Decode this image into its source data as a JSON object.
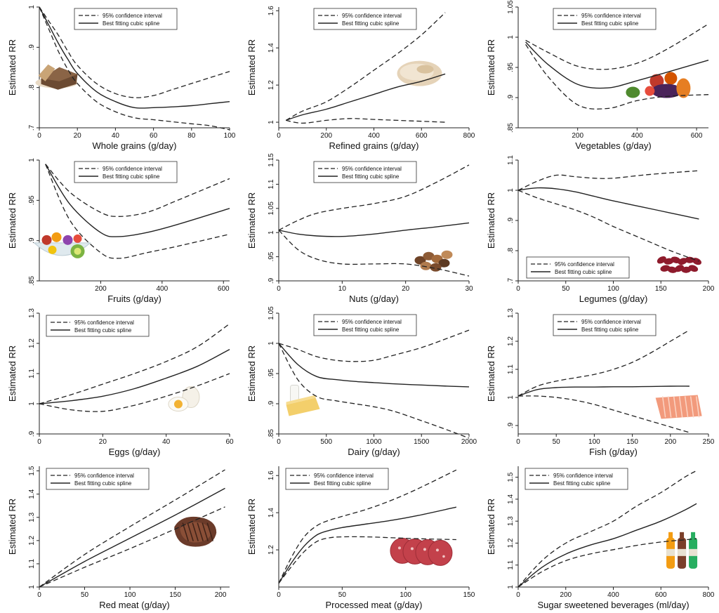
{
  "ylabel": "Estimated RR",
  "legend": {
    "ci": "95% confidence interval",
    "spline": "Best fitting cubic spline"
  },
  "chart_data": [
    {
      "type": "line",
      "xlabel": "Whole grains (g/day)",
      "ylabel": "Estimated RR",
      "xlim": [
        0,
        100
      ],
      "ylim": [
        0.7,
        1.0
      ],
      "xticks": [
        0,
        20,
        40,
        60,
        80,
        100
      ],
      "xtick_labels": [
        "0",
        "20",
        "40",
        "60",
        "80",
        "100"
      ],
      "yticks": [
        0.7,
        0.8,
        0.9,
        1.0
      ],
      "ytick_labels": [
        ".7",
        ".8",
        ".9",
        "1"
      ],
      "legend_position": "top-right",
      "image": "bread",
      "x": [
        0,
        5,
        10,
        15,
        20,
        30,
        40,
        50,
        60,
        70,
        80,
        90,
        100
      ],
      "series": [
        {
          "name": "95% confidence interval",
          "style": "dashed",
          "values": [
            1.0,
            0.965,
            0.93,
            0.89,
            0.855,
            0.81,
            0.785,
            0.775,
            0.78,
            0.795,
            0.81,
            0.825,
            0.84
          ]
        },
        {
          "name": "Best fitting cubic spline",
          "style": "solid",
          "values": [
            1.0,
            0.955,
            0.91,
            0.87,
            0.835,
            0.79,
            0.765,
            0.75,
            0.75,
            0.752,
            0.755,
            0.76,
            0.765
          ]
        },
        {
          "name": "95% confidence interval",
          "style": "dashed",
          "values": [
            1.0,
            0.945,
            0.89,
            0.845,
            0.81,
            0.765,
            0.74,
            0.725,
            0.72,
            0.715,
            0.71,
            0.705,
            0.695
          ]
        }
      ]
    },
    {
      "type": "line",
      "xlabel": "Refined grains (g/day)",
      "ylabel": "Estimated RR",
      "xlim": [
        0,
        800
      ],
      "ylim": [
        0.97,
        1.62
      ],
      "xticks": [
        0,
        200,
        400,
        600,
        800
      ],
      "xtick_labels": [
        "0",
        "200",
        "400",
        "600",
        "800"
      ],
      "yticks": [
        1.0,
        1.2,
        1.4,
        1.6
      ],
      "ytick_labels": [
        "1",
        "1.2",
        "1.4",
        "1.6"
      ],
      "legend_position": "top-right",
      "image": "bread-loaf",
      "x": [
        30,
        100,
        200,
        300,
        400,
        500,
        600,
        700
      ],
      "series": [
        {
          "name": "95% confidence interval",
          "style": "dashed",
          "values": [
            1.01,
            1.06,
            1.11,
            1.19,
            1.28,
            1.37,
            1.47,
            1.59
          ]
        },
        {
          "name": "Best fitting cubic spline",
          "style": "solid",
          "values": [
            1.01,
            1.04,
            1.07,
            1.11,
            1.15,
            1.19,
            1.22,
            1.26
          ]
        },
        {
          "name": "95% confidence interval",
          "style": "dashed",
          "values": [
            1.01,
            0.995,
            1.01,
            1.02,
            1.015,
            1.01,
            1.005,
            1.0
          ]
        }
      ]
    },
    {
      "type": "line",
      "xlabel": "Vegetables (g/day)",
      "ylabel": "Estimated RR",
      "xlim": [
        0,
        640
      ],
      "ylim": [
        0.85,
        1.05
      ],
      "xticks": [
        200,
        400,
        600
      ],
      "xtick_labels": [
        "200",
        "400",
        "600"
      ],
      "yticks": [
        0.85,
        0.9,
        0.95,
        1.0,
        1.05
      ],
      "ytick_labels": [
        ".85",
        ".9",
        ".95",
        "1",
        "1.05"
      ],
      "legend_position": "top-right",
      "image": "vegetables",
      "x": [
        25,
        100,
        200,
        300,
        400,
        500,
        640
      ],
      "series": [
        {
          "name": "95% confidence interval",
          "style": "dashed",
          "values": [
            0.995,
            0.975,
            0.952,
            0.947,
            0.957,
            0.98,
            1.022
          ]
        },
        {
          "name": "Best fitting cubic spline",
          "style": "solid",
          "values": [
            0.992,
            0.955,
            0.922,
            0.916,
            0.928,
            0.942,
            0.962
          ]
        },
        {
          "name": "95% confidence interval",
          "style": "dashed",
          "values": [
            0.988,
            0.935,
            0.888,
            0.882,
            0.895,
            0.902,
            0.905
          ]
        }
      ]
    },
    {
      "type": "line",
      "xlabel": "Fruits (g/day)",
      "ylabel": "Estimated RR",
      "xlim": [
        0,
        620
      ],
      "ylim": [
        0.85,
        1.0
      ],
      "xticks": [
        200,
        400,
        600
      ],
      "xtick_labels": [
        "200",
        "400",
        "600"
      ],
      "yticks": [
        0.85,
        0.9,
        0.95,
        1.0
      ],
      "ytick_labels": [
        ".85",
        ".9",
        ".95",
        "1"
      ],
      "legend_position": "top-right",
      "image": "fruit-bowl",
      "x": [
        20,
        100,
        200,
        260,
        350,
        450,
        620
      ],
      "series": [
        {
          "name": "95% confidence interval",
          "style": "dashed",
          "values": [
            0.995,
            0.96,
            0.935,
            0.93,
            0.935,
            0.95,
            0.977
          ]
        },
        {
          "name": "Best fitting cubic spline",
          "style": "solid",
          "values": [
            0.995,
            0.945,
            0.91,
            0.905,
            0.91,
            0.92,
            0.94
          ]
        },
        {
          "name": "95% confidence interval",
          "style": "dashed",
          "values": [
            0.995,
            0.925,
            0.885,
            0.878,
            0.885,
            0.893,
            0.908
          ]
        }
      ]
    },
    {
      "type": "line",
      "xlabel": "Nuts (g/day)",
      "ylabel": "Estimated RR",
      "xlim": [
        0,
        30
      ],
      "ylim": [
        0.9,
        1.15
      ],
      "xticks": [
        0,
        10,
        20,
        30
      ],
      "xtick_labels": [
        "0",
        "10",
        "20",
        "30"
      ],
      "yticks": [
        0.9,
        0.95,
        1.0,
        1.05,
        1.1,
        1.15
      ],
      "ytick_labels": [
        ".9",
        ".95",
        "1",
        "1.05",
        "1.1",
        "1.15"
      ],
      "legend_position": "top-right",
      "image": "nuts",
      "x": [
        0,
        3,
        6,
        10,
        15,
        20,
        25,
        30
      ],
      "series": [
        {
          "name": "95% confidence interval",
          "style": "dashed",
          "values": [
            1.005,
            1.025,
            1.04,
            1.05,
            1.06,
            1.075,
            1.105,
            1.14
          ]
        },
        {
          "name": "Best fitting cubic spline",
          "style": "solid",
          "values": [
            1.005,
            0.997,
            0.993,
            0.992,
            0.997,
            1.005,
            1.012,
            1.02
          ]
        },
        {
          "name": "95% confidence interval",
          "style": "dashed",
          "values": [
            1.005,
            0.965,
            0.945,
            0.935,
            0.935,
            0.935,
            0.925,
            0.91
          ]
        }
      ]
    },
    {
      "type": "line",
      "xlabel": "Legumes (g/day)",
      "ylabel": "Estimated RR",
      "xlim": [
        0,
        200
      ],
      "ylim": [
        0.7,
        1.1
      ],
      "xticks": [
        0,
        50,
        100,
        150,
        200
      ],
      "xtick_labels": [
        "0",
        "50",
        "100",
        "150",
        "200"
      ],
      "yticks": [
        0.7,
        0.8,
        0.9,
        1.0,
        1.1
      ],
      "ytick_labels": [
        ".7",
        ".8",
        ".9",
        "1",
        "1.1"
      ],
      "legend_position": "bottom-left",
      "image": "beans",
      "x": [
        0,
        20,
        40,
        60,
        80,
        100,
        130,
        160,
        190
      ],
      "series": [
        {
          "name": "95% confidence interval",
          "style": "dashed",
          "values": [
            1.0,
            1.03,
            1.05,
            1.045,
            1.04,
            1.04,
            1.05,
            1.058,
            1.065
          ]
        },
        {
          "name": "Best fitting cubic spline",
          "style": "solid",
          "values": [
            1.0,
            1.008,
            1.005,
            0.995,
            0.98,
            0.965,
            0.945,
            0.925,
            0.905
          ]
        },
        {
          "name": "95% confidence interval",
          "style": "dashed",
          "values": [
            1.0,
            0.975,
            0.955,
            0.935,
            0.91,
            0.88,
            0.84,
            0.8,
            0.765
          ]
        }
      ]
    },
    {
      "type": "line",
      "xlabel": "Eggs (g/day)",
      "ylabel": "Estimated RR",
      "xlim": [
        0,
        60
      ],
      "ylim": [
        0.9,
        1.3
      ],
      "xticks": [
        0,
        20,
        40,
        60
      ],
      "xtick_labels": [
        "0",
        "20",
        "40",
        "60"
      ],
      "yticks": [
        0.9,
        1.0,
        1.1,
        1.2,
        1.3
      ],
      "ytick_labels": [
        ".9",
        "1",
        "1.1",
        "1.2",
        "1.3"
      ],
      "legend_position": "top-left",
      "image": "eggs",
      "x": [
        0,
        10,
        20,
        30,
        40,
        50,
        60
      ],
      "series": [
        {
          "name": "95% confidence interval",
          "style": "dashed",
          "values": [
            1.0,
            1.03,
            1.065,
            1.1,
            1.14,
            1.19,
            1.265
          ]
        },
        {
          "name": "Best fitting cubic spline",
          "style": "solid",
          "values": [
            1.0,
            1.01,
            1.025,
            1.05,
            1.085,
            1.125,
            1.18
          ]
        },
        {
          "name": "95% confidence interval",
          "style": "dashed",
          "values": [
            1.0,
            0.98,
            0.975,
            0.995,
            1.025,
            1.06,
            1.1
          ]
        }
      ]
    },
    {
      "type": "line",
      "xlabel": "Dairy (g/day)",
      "ylabel": "Estimated RR",
      "xlim": [
        0,
        2000
      ],
      "ylim": [
        0.85,
        1.05
      ],
      "xticks": [
        0,
        500,
        1000,
        1500,
        2000
      ],
      "xtick_labels": [
        "0",
        "500",
        "1000",
        "1500",
        "2000"
      ],
      "yticks": [
        0.85,
        0.9,
        0.95,
        1.0,
        1.05
      ],
      "ytick_labels": [
        ".85",
        ".9",
        ".95",
        "1",
        "1.05"
      ],
      "legend_position": "top-right",
      "image": "milk-cheese",
      "x": [
        0,
        200,
        400,
        600,
        800,
        1000,
        1200,
        1500,
        1800,
        2000
      ],
      "series": [
        {
          "name": "95% confidence interval",
          "style": "dashed",
          "values": [
            1.0,
            0.99,
            0.978,
            0.972,
            0.97,
            0.972,
            0.98,
            0.993,
            1.01,
            1.022
          ]
        },
        {
          "name": "Best fitting cubic spline",
          "style": "solid",
          "values": [
            1.0,
            0.965,
            0.945,
            0.94,
            0.937,
            0.935,
            0.933,
            0.931,
            0.929,
            0.928
          ]
        },
        {
          "name": "95% confidence interval",
          "style": "dashed",
          "values": [
            1.0,
            0.94,
            0.912,
            0.905,
            0.9,
            0.895,
            0.888,
            0.872,
            0.855,
            0.843
          ]
        }
      ]
    },
    {
      "type": "line",
      "xlabel": "Fish (g/day)",
      "ylabel": "Estimated RR",
      "xlim": [
        0,
        250
      ],
      "ylim": [
        0.87,
        1.3
      ],
      "xticks": [
        0,
        50,
        100,
        150,
        200,
        250
      ],
      "xtick_labels": [
        "0",
        "50",
        "100",
        "150",
        "200",
        "250"
      ],
      "yticks": [
        0.9,
        1.0,
        1.1,
        1.2,
        1.3
      ],
      "ytick_labels": [
        ".9",
        "1",
        "1.1",
        "1.2",
        "1.3"
      ],
      "legend_position": "top-right",
      "image": "salmon",
      "x": [
        0,
        25,
        50,
        75,
        100,
        125,
        150,
        175,
        200,
        225
      ],
      "series": [
        {
          "name": "95% confidence interval",
          "style": "dashed",
          "values": [
            1.005,
            1.04,
            1.058,
            1.07,
            1.082,
            1.1,
            1.125,
            1.16,
            1.2,
            1.24
          ]
        },
        {
          "name": "Best fitting cubic spline",
          "style": "solid",
          "values": [
            1.005,
            1.028,
            1.035,
            1.037,
            1.037,
            1.038,
            1.038,
            1.039,
            1.04,
            1.04
          ]
        },
        {
          "name": "95% confidence interval",
          "style": "dashed",
          "values": [
            1.005,
            1.005,
            1.0,
            0.99,
            0.975,
            0.955,
            0.935,
            0.915,
            0.895,
            0.875
          ]
        }
      ]
    },
    {
      "type": "line",
      "xlabel": "Red meat (g/day)",
      "ylabel": "Estimated RR",
      "xlim": [
        0,
        210
      ],
      "ylim": [
        1.0,
        1.52
      ],
      "xticks": [
        0,
        50,
        100,
        150,
        200
      ],
      "xtick_labels": [
        "0",
        "50",
        "100",
        "150",
        "200"
      ],
      "yticks": [
        1.0,
        1.1,
        1.2,
        1.3,
        1.4,
        1.5
      ],
      "ytick_labels": [
        "1",
        "1.1",
        "1.2",
        "1.3",
        "1.4",
        "1.5"
      ],
      "legend_position": "top-left",
      "image": "steak",
      "x": [
        0,
        50,
        100,
        150,
        205
      ],
      "series": [
        {
          "name": "95% confidence interval",
          "style": "dashed",
          "values": [
            1.0,
            1.14,
            1.26,
            1.375,
            1.505
          ]
        },
        {
          "name": "Best fitting cubic spline",
          "style": "solid",
          "values": [
            1.0,
            1.11,
            1.21,
            1.31,
            1.425
          ]
        },
        {
          "name": "95% confidence interval",
          "style": "dashed",
          "values": [
            1.0,
            1.085,
            1.165,
            1.25,
            1.345
          ]
        }
      ]
    },
    {
      "type": "line",
      "xlabel": "Processed meat (g/day)",
      "ylabel": "Estimated RR",
      "xlim": [
        0,
        150
      ],
      "ylim": [
        1.0,
        1.65
      ],
      "xticks": [
        0,
        50,
        100,
        150
      ],
      "xtick_labels": [
        "0",
        "50",
        "100",
        "150"
      ],
      "yticks": [
        1.2,
        1.4,
        1.6
      ],
      "ytick_labels": [
        "1.2",
        "1.4",
        "1.6"
      ],
      "legend_position": "top-left",
      "image": "salami",
      "x": [
        0,
        10,
        20,
        30,
        40,
        50,
        70,
        90,
        110,
        140
      ],
      "series": [
        {
          "name": "95% confidence interval",
          "style": "dashed",
          "values": [
            1.02,
            1.16,
            1.27,
            1.33,
            1.36,
            1.38,
            1.42,
            1.47,
            1.53,
            1.63
          ]
        },
        {
          "name": "Best fitting cubic spline",
          "style": "solid",
          "values": [
            1.02,
            1.13,
            1.22,
            1.28,
            1.305,
            1.32,
            1.34,
            1.36,
            1.385,
            1.43
          ]
        },
        {
          "name": "95% confidence interval",
          "style": "dashed",
          "values": [
            1.02,
            1.11,
            1.19,
            1.245,
            1.265,
            1.27,
            1.27,
            1.265,
            1.26,
            1.255
          ]
        }
      ]
    },
    {
      "type": "line",
      "xlabel": "Sugar sweetened beverages (ml/day)",
      "ylabel": "Estimated RR",
      "xlim": [
        0,
        800
      ],
      "ylim": [
        1.0,
        1.55
      ],
      "xticks": [
        0,
        200,
        400,
        600,
        800
      ],
      "xtick_labels": [
        "0",
        "200",
        "400",
        "600",
        "800"
      ],
      "yticks": [
        1.0,
        1.1,
        1.2,
        1.3,
        1.4,
        1.5
      ],
      "ytick_labels": [
        "1",
        "1.1",
        "1.2",
        "1.3",
        "1.4",
        "1.5"
      ],
      "legend_position": "top-left",
      "image": "soda-bottles",
      "x": [
        0,
        100,
        200,
        300,
        400,
        500,
        600,
        700,
        750
      ],
      "series": [
        {
          "name": "95% confidence interval",
          "style": "dashed",
          "values": [
            1.0,
            1.12,
            1.2,
            1.25,
            1.3,
            1.37,
            1.43,
            1.5,
            1.53
          ]
        },
        {
          "name": "Best fitting cubic spline",
          "style": "solid",
          "values": [
            1.0,
            1.09,
            1.15,
            1.19,
            1.22,
            1.26,
            1.3,
            1.35,
            1.38
          ]
        },
        {
          "name": "95% confidence interval",
          "style": "dashed",
          "values": [
            1.0,
            1.07,
            1.12,
            1.15,
            1.17,
            1.19,
            1.205,
            1.215,
            1.22
          ]
        }
      ]
    }
  ]
}
